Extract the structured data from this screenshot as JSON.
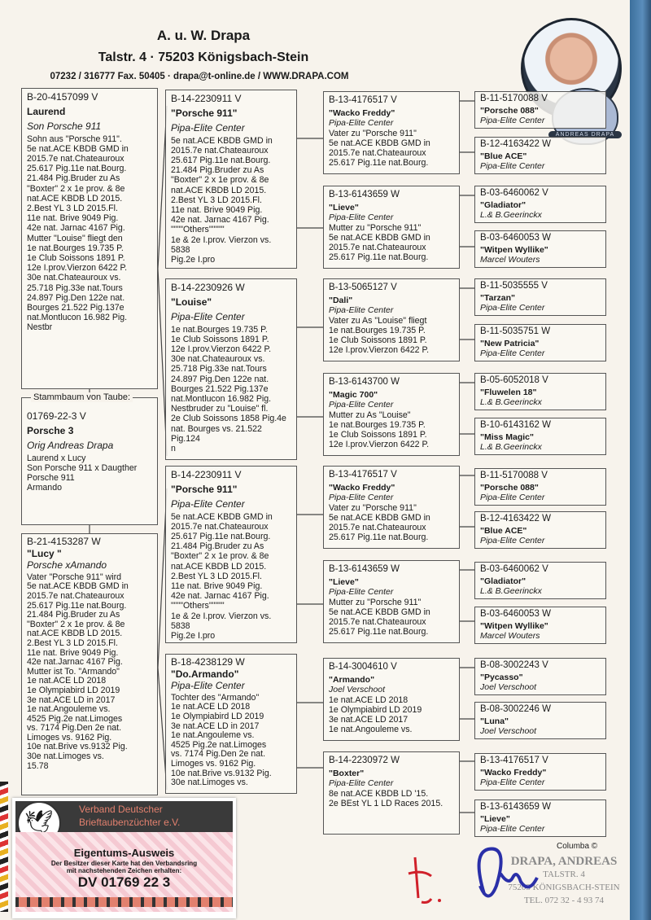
{
  "header": {
    "name": "A. u. W. Drapa",
    "address": "Talstr. 4  ·  75203 Königsbach-Stein",
    "contact": "07232 / 316777 Fax. 50405  ·  drapa@t-online.de / WWW.DRAPA.COM",
    "badge_text": "ANDREAS DRAPA"
  },
  "subject": {
    "legend": "Stammbaum von Taube:",
    "ring": "01769-22-3 V",
    "name": "Porsche  3",
    "breeder": "Orig Andreas Drapa",
    "notes": [
      "Laurend  x  Lucy",
      "Son Porsche 911 x Daugther",
      "Porsche 911",
      "Armando"
    ]
  },
  "parents": [
    {
      "ring": "B-20-4157099 V",
      "name": "Laurend",
      "breeder": "Son Porsche 911",
      "notes": [
        "Sohn aus \"Porsche 911\".",
        "5e nat.ACE KBDB GMD in",
        "2015.7e nat.Chateauroux",
        "25.617 Pig.11e nat.Bourg.",
        "21.484 Pig.Bruder zu As",
        "\"Boxter\" 2 x 1e prov. & 8e",
        "nat.ACE KBDB LD 2015.",
        "2.Best YL 3 LD 2015.Fl.",
        "11e nat.  Brive   9049 Pig.",
        "42e nat. Jarnac 4167 Pig.",
        "Mutter \"Louise\" fliegt den",
        "1e nat.Bourges 19.735 P.",
        "1e Club Soissons 1891 P.",
        "12e I.prov.Vierzon 6422 P.",
        "30e nat.Chateauroux vs.",
        "25.718 Pig.33e nat.Tours",
        "24.897 Pig.Den 122e nat.",
        "Bourges 21.522 Pig.137e",
        "nat.Montlucon 16.982 Pig.",
        "Nestbr"
      ]
    },
    {
      "ring": "B-21-4153287 W",
      "name": "\"Lucy \"",
      "breeder": "Porsche xAmando",
      "notes": [
        "Vater \"Porsche 911\" wird",
        "5e nat.ACE KBDB GMD in",
        "2015.7e nat.Chateauroux",
        "25.617 Pig.11e nat.Bourg.",
        "21.484 Pig.Bruder zu As",
        "\"Boxter\" 2 x 1e prov. & 8e",
        "nat.ACE KBDB LD 2015.",
        "2.Best YL 3 LD 2015.Fl.",
        "11e nat. Brive   9049 Pig.",
        "42e nat.Jarnac 4167 Pig.",
        "Mutter ist To. \"Armando\"",
        "1e nat.ACE LD 2018",
        "1e Olympiabird LD 2019",
        "3e nat.ACE LD in 2017",
        "1e nat.Angouleme  vs.",
        "4525 Pig.2e nat.Limoges",
        "vs. 7174 Pig.Den 2e nat.",
        "Limoges vs. 9162 Pig.",
        "10e nat.Brive vs.9132 Pig.",
        "30e nat.Limoges vs.",
        "15.78"
      ]
    }
  ],
  "grandparents": [
    {
      "ring": "B-14-2230911 V",
      "name": "\"Porsche 911\"",
      "breeder": "Pipa-Elite Center",
      "notes": [
        "5e nat.ACE KBDB GMD in",
        "2015.7e nat.Chateauroux",
        "25.617 Pig.11e nat.Bourg.",
        "21.484 Pig.Bruder zu As",
        "\"Boxter\" 2 x 1e prov. & 8e",
        "nat.ACE KBDB LD 2015.",
        "2.Best YL 3 LD 2015.Fl.",
        "11e nat.  Brive   9049 Pig.",
        "42e nat. Jarnac 4167 Pig.",
        "      \"\"\"\"Others\"\"\"\"\"",
        "1e & 2e I.prov. Vierzon vs. 5838",
        "Pig.2e I.pro"
      ]
    },
    {
      "ring": "B-14-2230926 W",
      "name": "\"Louise\"",
      "breeder": "Pipa-Elite Center",
      "notes": [
        "1e nat.Bourges 19.735 P.",
        "1e Club Soissons 1891 P.",
        "12e I.prov.Vierzon 6422 P.",
        "30e nat.Chateauroux vs.",
        "25.718 Pig.33e nat.Tours",
        "24.897 Pig.Den 122e nat.",
        "Bourges 21.522 Pig.137e",
        "nat.Montlucon 16.982 Pig.",
        "Nestbruder zu \"Louise\" fl.",
        "2e Club  Soissons 1858 Pig.4e",
        "nat. Bourges vs. 21.522 Pig.124",
        "n"
      ]
    },
    {
      "ring": "B-14-2230911 V",
      "name": "\"Porsche 911\"",
      "breeder": "Pipa-Elite Center",
      "notes": [
        "5e nat.ACE KBDB GMD in",
        "2015.7e nat.Chateauroux",
        "25.617 Pig.11e nat.Bourg.",
        "21.484 Pig.Bruder zu As",
        "\"Boxter\" 2 x 1e prov. & 8e",
        "nat.ACE KBDB LD 2015.",
        "2.Best YL 3 LD 2015.Fl.",
        "11e nat.  Brive   9049 Pig.",
        "42e nat. Jarnac 4167 Pig.",
        "      \"\"\"\"Others\"\"\"\"\"",
        "1e & 2e I.prov. Vierzon vs. 5838",
        "Pig.2e I.pro"
      ]
    },
    {
      "ring": "B-18-4238129 W",
      "name": "\"Do.Armando\"",
      "breeder": "Pipa-Elite Center",
      "notes": [
        "Tochter des \"Armando\"",
        "1e nat.ACE LD 2018",
        "1e Olympiabird LD 2019",
        "3e nat.ACE LD in 2017",
        "1e nat.Angouleme  vs.",
        "4525 Pig.2e nat.Limoges",
        "vs. 7174 Pig.Den 2e nat.",
        "Limoges vs. 9162 Pig.",
        "10e nat.Brive vs.9132 Pig.",
        "30e nat.Limoges vs."
      ]
    }
  ],
  "great_grandparents": [
    {
      "ring": "B-13-4176517 V",
      "name": "\"Wacko Freddy\"",
      "breeder": "Pipa-Elite Center",
      "notes": [
        "Vater zu \"Porsche 911\"",
        "5e nat.ACE KBDB GMD in",
        "2015.7e nat.Chateauroux",
        "25.617 Pig.11e nat.Bourg."
      ]
    },
    {
      "ring": "B-13-6143659 W",
      "name": "\"Lieve\"",
      "breeder": "Pipa-Elite Center",
      "notes": [
        "Mutter zu \"Porsche 911\"",
        "5e nat.ACE KBDB GMD in",
        "2015.7e nat.Chateauroux",
        "25.617 Pig.11e nat.Bourg."
      ]
    },
    {
      "ring": "B-13-5065127 V",
      "name": "\"Dali\"",
      "breeder": "Pipa-Elite Center",
      "notes": [
        "Vater zu As \"Louise\" fliegt",
        "1e nat.Bourges 19.735  P.",
        "1e Club Soissons 1891 P.",
        "12e I.prov.Vierzon 6422 P."
      ]
    },
    {
      "ring": "B-13-6143700 W",
      "name": "\"Magic 700\"",
      "breeder": "Pipa-Elite Center",
      "notes": [
        "Mutter zu As \"Louise\"",
        "1e nat.Bourges 19.735  P.",
        "1e Club Soissons 1891 P.",
        "12e I.prov.Vierzon 6422 P."
      ]
    },
    {
      "ring": "B-13-4176517 V",
      "name": "\"Wacko Freddy\"",
      "breeder": "Pipa-Elite Center",
      "notes": [
        "Vater zu \"Porsche 911\"",
        "5e nat.ACE KBDB GMD in",
        "2015.7e nat.Chateauroux",
        "25.617 Pig.11e nat.Bourg."
      ]
    },
    {
      "ring": "B-13-6143659 W",
      "name": "\"Lieve\"",
      "breeder": "Pipa-Elite Center",
      "notes": [
        "Mutter zu \"Porsche 911\"",
        "5e nat.ACE KBDB GMD in",
        "2015.7e nat.Chateauroux",
        "25.617 Pig.11e nat.Bourg."
      ]
    },
    {
      "ring": "B-14-3004610 V",
      "name": "\"Armando\"",
      "breeder": "Joel Verschoot",
      "notes": [
        "1e nat.ACE LD 2018",
        "1e Olympiabird LD 2019",
        "3e nat.ACE LD 2017",
        "1e nat.Angouleme  vs."
      ]
    },
    {
      "ring": "B-14-2230972 W",
      "name": "\"Boxter\"",
      "breeder": "Pipa-Elite Center",
      "notes": [
        "8e nat.ACE KBDB LD '15.",
        "2e BEst YL 1 LD Races 2015."
      ]
    }
  ],
  "great_great_grandparents": [
    {
      "ring": "B-11-5170088 V",
      "name": "\"Porsche 088\"",
      "breeder": "Pipa-Elite Center"
    },
    {
      "ring": "B-12-4163422 W",
      "name": "\"Blue ACE\"",
      "breeder": "Pipa-Elite Center"
    },
    {
      "ring": "B-03-6460062 V",
      "name": "\"Gladiator\"",
      "breeder": "L.& B.Geerinckx"
    },
    {
      "ring": "B-03-6460053 W",
      "name": "\"Witpen Wyllike\"",
      "breeder": "Marcel Wouters"
    },
    {
      "ring": "B-11-5035555 V",
      "name": "\"Tarzan\"",
      "breeder": "Pipa-Elite Center"
    },
    {
      "ring": "B-11-5035751 W",
      "name": "\"New Patricia\"",
      "breeder": "Pipa-Elite Center"
    },
    {
      "ring": "B-05-6052018 V",
      "name": "\"Fluwelen 18\"",
      "breeder": "L.& B.Geerinckx"
    },
    {
      "ring": "B-10-6143162 W",
      "name": "\"Miss Magic\"",
      "breeder": "L.& B.Geerinckx"
    },
    {
      "ring": "B-11-5170088 V",
      "name": "\"Porsche 088\"",
      "breeder": "Pipa-Elite Center"
    },
    {
      "ring": "B-12-4163422 W",
      "name": "\"Blue ACE\"",
      "breeder": "Pipa-Elite Center"
    },
    {
      "ring": "B-03-6460062 V",
      "name": "\"Gladiator\"",
      "breeder": "L.& B.Geerinckx"
    },
    {
      "ring": "B-03-6460053 W",
      "name": "\"Witpen Wyllike\"",
      "breeder": "Marcel Wouters"
    },
    {
      "ring": "B-08-3002243 V",
      "name": "\"Pycasso\"",
      "breeder": "Joel Verschoot"
    },
    {
      "ring": "B-08-3002246 W",
      "name": "\"Luna\"",
      "breeder": "Joel Verschoot"
    },
    {
      "ring": "B-13-4176517 V",
      "name": "\"Wacko Freddy\"",
      "breeder": "Pipa-Elite Center"
    },
    {
      "ring": "B-13-6143659 W",
      "name": "\"Lieve\"",
      "breeder": "Pipa-Elite Center"
    }
  ],
  "card": {
    "org_line1": "Verband Deutscher",
    "org_line2": "Brieftaubenzüchter e.V.",
    "title": "Eigentums-Ausweis",
    "text_line1": "Der Besitzer dieser Karte hat den Verbandsring",
    "text_line2": "mit nachstehenden Zeichen erhalten:",
    "ring_number": "DV 01769 22 3"
  },
  "stamp": {
    "line1": "DRAPA, ANDREAS",
    "line2": "TALSTR. 4",
    "line3": "75203 KÖNIGSBACH-STEIN",
    "line4": "TEL. 072 32 - 4 93 74",
    "columba": "Columba ©"
  },
  "colors": {
    "accent_blue": "#3c6f9c",
    "signature": "#2a2fa8",
    "signature_red": "#d0202a",
    "card_pink": "#f5c9d2"
  }
}
